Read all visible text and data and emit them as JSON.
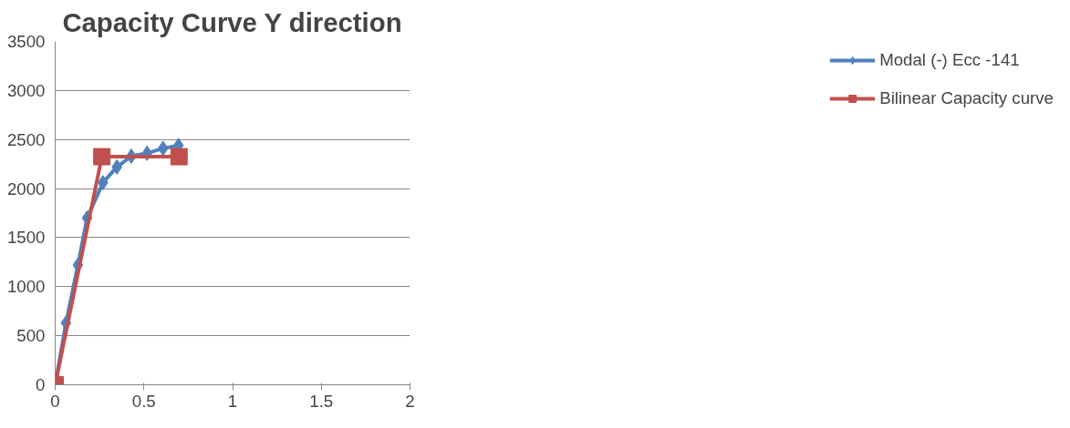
{
  "chart_data": {
    "type": "line",
    "title": "Capacity Curve Y direction",
    "xlim": [
      0,
      2
    ],
    "xticks": [
      0,
      0.5,
      1,
      1.5,
      2
    ],
    "ylim": [
      0,
      3500
    ],
    "yticks": [
      0,
      500,
      1000,
      1500,
      2000,
      2500,
      3000,
      3500
    ],
    "grid": "y",
    "legend": "right",
    "series": [
      {
        "name": "Modal (-) Ecc -141",
        "color": "#4f81bd",
        "marker": "diamond",
        "x": [
          0,
          0.061,
          0.128,
          0.18,
          0.269,
          0.348,
          0.429,
          0.518,
          0.608,
          0.695
        ],
        "values": [
          0,
          630,
          1220,
          1700,
          2060,
          2220,
          2330,
          2360,
          2410,
          2440
        ]
      },
      {
        "name": "Bilinear Capacity curve",
        "color": "#c0504d",
        "marker": "square",
        "x": [
          0,
          0.263,
          0.698
        ],
        "values": [
          0,
          2325,
          2325
        ]
      }
    ]
  }
}
